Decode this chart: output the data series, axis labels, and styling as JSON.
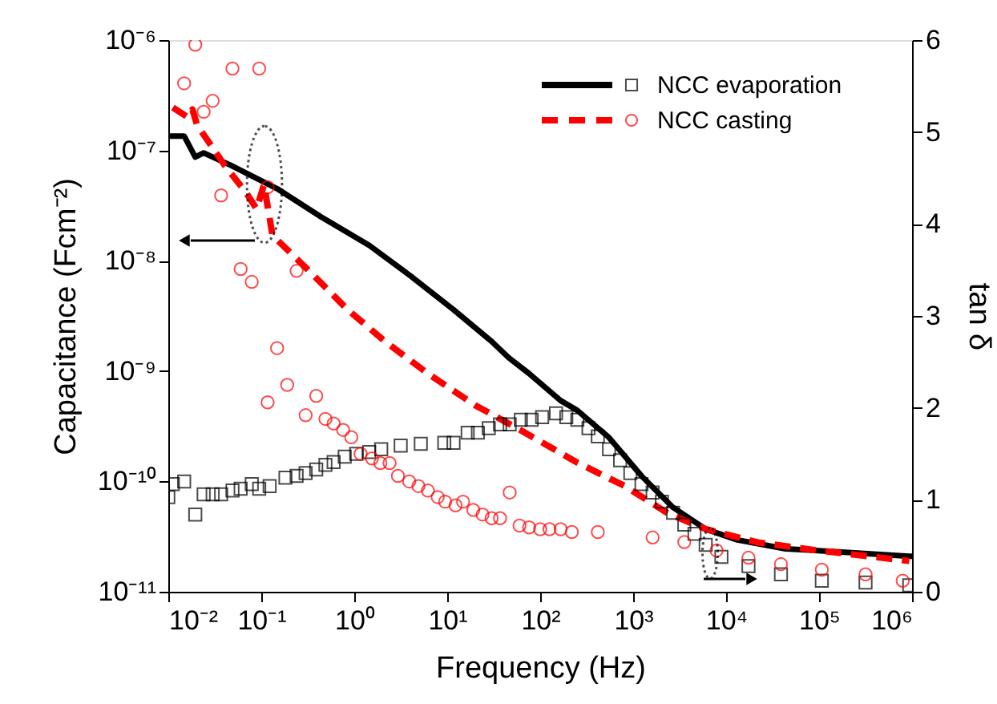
{
  "chart_data": {
    "type": "line",
    "xlabel": "Frequency (Hz)",
    "ylabel": "Capacitance (Fcm⁻²)",
    "y2label": "tan δ",
    "log": "xy",
    "grid": false,
    "legend": "top right",
    "xlim": [
      0.01,
      1000000
    ],
    "xticks": [
      {
        "value": 0.01,
        "label": "10⁻²"
      },
      {
        "value": 0.1,
        "label": "10⁻¹"
      },
      {
        "value": 1,
        "label": "10⁰"
      },
      {
        "value": 10,
        "label": "10¹"
      },
      {
        "value": 100,
        "label": "10²"
      },
      {
        "value": 1000,
        "label": "10³"
      },
      {
        "value": 10000,
        "label": "10⁴"
      },
      {
        "value": 100000,
        "label": "10⁵"
      },
      {
        "value": 1000000,
        "label": "10⁶"
      }
    ],
    "ylim": [
      1e-11,
      1e-06
    ],
    "yticks": [
      {
        "value": 1e-11,
        "label": "10⁻¹¹"
      },
      {
        "value": 1e-10,
        "label": "10⁻¹⁰"
      },
      {
        "value": 1e-09,
        "label": "10⁻⁹"
      },
      {
        "value": 1e-08,
        "label": "10⁻⁸"
      },
      {
        "value": 1e-07,
        "label": "10⁻⁷"
      },
      {
        "value": 1e-06,
        "label": "10⁻⁶"
      }
    ],
    "y2lim": [
      0,
      6
    ],
    "y2ticks": [
      0,
      1,
      2,
      3,
      4,
      5,
      6
    ],
    "series": [
      {
        "name": "NCC evaporation",
        "axis": "y",
        "color": "#000000",
        "line_style": "solid",
        "x": [
          0.01,
          0.0148,
          0.0195,
          0.024,
          0.046,
          0.148,
          0.44,
          1.45,
          4.2,
          11.7,
          30,
          46,
          76,
          166,
          251,
          550,
          1230,
          2690,
          6030,
          13200,
          43700,
          162000,
          933000,
          1000000
        ],
        "values": [
          1.35e-07,
          1.35e-07,
          8.7e-08,
          9.5e-08,
          7.4e-08,
          4.5e-08,
          2.5e-08,
          1.38e-08,
          7.1e-09,
          3.6e-09,
          1.86e-09,
          1.32e-09,
          9.5e-10,
          5.4e-10,
          4.4e-10,
          2.5e-10,
          1.12e-10,
          5.8e-11,
          3.7e-11,
          2.95e-11,
          2.45e-11,
          2.3e-11,
          2.1e-11,
          2.1e-11
        ]
      },
      {
        "name": "NCC casting",
        "axis": "y",
        "color": "#ff0000",
        "line_style": "dashed",
        "x": [
          0.0112,
          0.0162,
          0.0182,
          0.0204,
          0.04,
          0.068,
          0.089,
          0.107,
          0.132,
          0.3,
          0.85,
          2.14,
          6.2,
          20,
          58,
          251,
          810,
          2400,
          6030,
          21900,
          85000,
          933000
        ],
        "values": [
          2.45e-07,
          2e-07,
          2.35e-07,
          1.7e-07,
          7.4e-08,
          4.2e-08,
          2.95e-08,
          4.9e-08,
          1.7e-08,
          8.7e-09,
          3.6e-09,
          1.86e-09,
          9.5e-10,
          4.9e-10,
          3e-10,
          1.48e-10,
          9.1e-11,
          5.1e-11,
          3.7e-11,
          2.8e-11,
          2.4e-11,
          1.9e-11
        ]
      },
      {
        "type": "scatter",
        "axis": "y2",
        "color": "#000000",
        "marker": "square",
        "x": [
          0.01,
          0.0112,
          0.0148,
          0.0195,
          0.024,
          0.03,
          0.037,
          0.049,
          0.06,
          0.079,
          0.095,
          0.123,
          0.182,
          0.24,
          0.3,
          0.39,
          0.49,
          0.6,
          0.79,
          1.05,
          1.45,
          1.95,
          3.16,
          5.2,
          9.3,
          11.7,
          16.6,
          21.4,
          28,
          37,
          47,
          62,
          81,
          105,
          148,
          191,
          251,
          331,
          417,
          550,
          724,
          933,
          1230,
          1620,
          2040,
          2690,
          3550,
          4570,
          6030,
          8900,
          17400,
          38900,
          107000,
          316000,
          933000
        ],
        "values": [
          1.03,
          1.17,
          1.2,
          0.84,
          1.06,
          1.06,
          1.06,
          1.1,
          1.12,
          1.17,
          1.12,
          1.15,
          1.24,
          1.26,
          1.29,
          1.33,
          1.38,
          1.41,
          1.47,
          1.5,
          1.52,
          1.55,
          1.59,
          1.61,
          1.62,
          1.62,
          1.73,
          1.73,
          1.78,
          1.82,
          1.82,
          1.87,
          1.87,
          1.9,
          1.94,
          1.9,
          1.87,
          1.78,
          1.69,
          1.55,
          1.43,
          1.29,
          1.17,
          1.08,
          0.98,
          0.86,
          0.73,
          0.63,
          0.51,
          0.38,
          0.28,
          0.19,
          0.12,
          0.1,
          0.07
        ]
      },
      {
        "type": "scatter",
        "axis": "y2",
        "color": "#ff0000",
        "marker": "circle",
        "x": [
          0.0148,
          0.0195,
          0.024,
          0.03,
          0.037,
          0.049,
          0.06,
          0.079,
          0.095,
          0.117,
          0.148,
          0.117,
          0.19,
          0.24,
          0.3,
          0.39,
          0.49,
          0.6,
          0.76,
          0.93,
          1.17,
          1.55,
          1.91,
          2.4,
          2.95,
          3.9,
          4.9,
          6.2,
          7.9,
          9.5,
          12.3,
          14.8,
          19.1,
          24,
          30,
          37,
          47,
          60,
          76,
          100,
          126,
          166,
          219,
          417,
          1620,
          3550,
          7900,
          17400,
          38900,
          107000,
          316000,
          794000
        ],
        "values": [
          5.53,
          5.95,
          5.22,
          5.34,
          4.31,
          5.69,
          3.51,
          3.37,
          5.69,
          4.4,
          2.65,
          2.06,
          2.25,
          3.49,
          1.92,
          2.13,
          1.88,
          1.83,
          1.76,
          1.68,
          1.5,
          1.45,
          1.4,
          1.4,
          1.26,
          1.2,
          1.15,
          1.1,
          1.03,
          0.98,
          0.94,
          0.98,
          0.89,
          0.84,
          0.8,
          0.8,
          1.08,
          0.72,
          0.7,
          0.68,
          0.68,
          0.68,
          0.65,
          0.65,
          0.59,
          0.54,
          0.45,
          0.37,
          0.3,
          0.24,
          0.19,
          0.12
        ]
      }
    ]
  }
}
